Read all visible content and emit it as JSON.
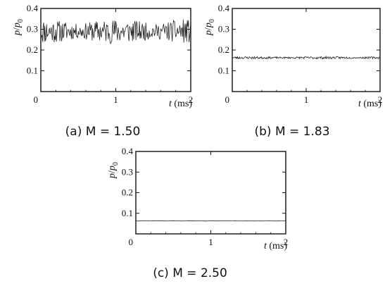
{
  "chart_data": [
    {
      "type": "line",
      "caption": "(a)  M = 1.50",
      "ylabel_var": "p",
      "ylabel_ref": "p",
      "ylabel_sub": "0",
      "xlabel_var": "t",
      "xlabel_unit": "(ms)",
      "xlim": [
        0,
        2
      ],
      "ylim": [
        0,
        0.4
      ],
      "xticks": [
        0,
        1,
        2
      ],
      "yticks": [
        0.1,
        0.2,
        0.3,
        0.4
      ],
      "series": [
        {
          "mean": 0.29,
          "amplitude": 0.06,
          "seed": 11,
          "samples": 260
        }
      ]
    },
    {
      "type": "line",
      "caption": "(b)  M = 1.83",
      "ylabel_var": "p",
      "ylabel_ref": "p",
      "ylabel_sub": "0",
      "xlabel_var": "t",
      "xlabel_unit": "(ms)",
      "xlim": [
        0,
        2
      ],
      "ylim": [
        0,
        0.4
      ],
      "xticks": [
        0,
        1,
        2
      ],
      "yticks": [
        0.1,
        0.2,
        0.3,
        0.4
      ],
      "series": [
        {
          "mean": 0.163,
          "amplitude": 0.006,
          "seed": 23,
          "samples": 260
        }
      ]
    },
    {
      "type": "line",
      "caption": "(c)  M = 2.50",
      "ylabel_var": "p",
      "ylabel_ref": "p",
      "ylabel_sub": "0",
      "xlabel_var": "t",
      "xlabel_unit": "(ms)",
      "xlim": [
        0,
        2
      ],
      "ylim": [
        0,
        0.4
      ],
      "xticks": [
        0,
        1,
        2
      ],
      "yticks": [
        0.1,
        0.2,
        0.3,
        0.4
      ],
      "series": [
        {
          "mean": 0.063,
          "amplitude": 0.001,
          "seed": 37,
          "samples": 200
        }
      ]
    }
  ]
}
